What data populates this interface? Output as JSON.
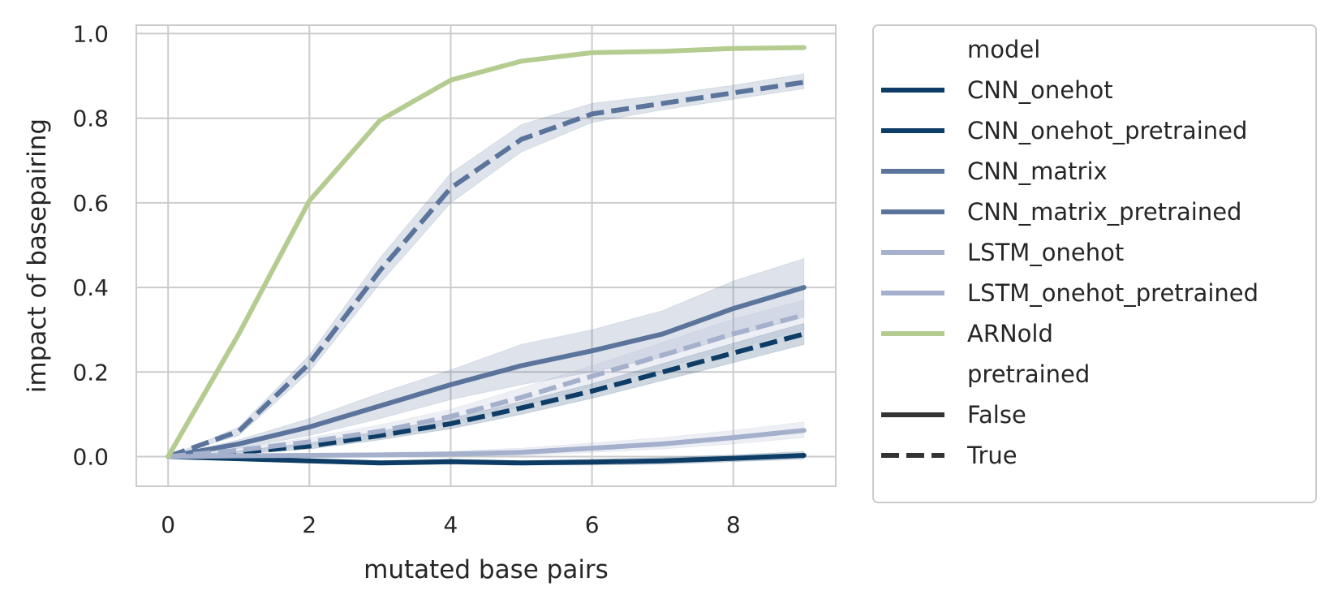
{
  "chart_data": {
    "type": "line",
    "title": "",
    "xlabel": "mutated base pairs",
    "ylabel": "impact of basepairing",
    "xlim": [
      -0.45,
      9.45
    ],
    "ylim": [
      -0.07,
      1.02
    ],
    "xticks": [
      "0",
      "2",
      "4",
      "6",
      "8"
    ],
    "xtick_values": [
      0,
      2,
      4,
      6,
      8
    ],
    "yticks": [
      "0.0",
      "0.2",
      "0.4",
      "0.6",
      "0.8",
      "1.0"
    ],
    "ytick_values": [
      0.0,
      0.2,
      0.4,
      0.6,
      0.8,
      1.0
    ],
    "grid": true,
    "legend_position": "outside-right",
    "x": [
      0,
      1,
      2,
      3,
      4,
      5,
      6,
      7,
      8,
      9
    ],
    "series": [
      {
        "name": "CNN_onehot",
        "pretrained": "False",
        "color": "#0d3d66",
        "dashed": false,
        "values": [
          0.0,
          -0.005,
          -0.01,
          -0.015,
          -0.012,
          -0.015,
          -0.013,
          -0.01,
          -0.004,
          0.003
        ],
        "ci_low": [
          0.0,
          -0.008,
          -0.015,
          -0.02,
          -0.018,
          -0.02,
          -0.02,
          -0.018,
          -0.012,
          -0.006
        ],
        "ci_high": [
          0.0,
          -0.002,
          -0.005,
          -0.01,
          -0.006,
          -0.01,
          -0.006,
          -0.002,
          0.004,
          0.012
        ]
      },
      {
        "name": "CNN_onehot_pretrained",
        "pretrained": "True",
        "color": "#0d3d66",
        "dashed": true,
        "values": [
          0.0,
          0.01,
          0.025,
          0.05,
          0.078,
          0.115,
          0.155,
          0.2,
          0.245,
          0.29
        ],
        "ci_low": [
          0.0,
          0.006,
          0.018,
          0.04,
          0.066,
          0.1,
          0.138,
          0.18,
          0.222,
          0.265
        ],
        "ci_high": [
          0.0,
          0.014,
          0.032,
          0.06,
          0.09,
          0.13,
          0.172,
          0.22,
          0.268,
          0.315
        ]
      },
      {
        "name": "CNN_matrix",
        "pretrained": "False",
        "color": "#5a749c",
        "dashed": false,
        "values": [
          0.0,
          0.03,
          0.07,
          0.12,
          0.17,
          0.215,
          0.25,
          0.29,
          0.35,
          0.4
        ],
        "ci_low": [
          0.0,
          0.02,
          0.05,
          0.09,
          0.135,
          0.17,
          0.2,
          0.235,
          0.285,
          0.33
        ],
        "ci_high": [
          0.0,
          0.04,
          0.09,
          0.15,
          0.205,
          0.265,
          0.3,
          0.345,
          0.415,
          0.468
        ]
      },
      {
        "name": "CNN_matrix_pretrained",
        "pretrained": "True",
        "color": "#5a749c",
        "dashed": true,
        "values": [
          0.0,
          0.06,
          0.22,
          0.44,
          0.635,
          0.75,
          0.81,
          0.835,
          0.86,
          0.885
        ],
        "ci_low": [
          0.0,
          0.05,
          0.2,
          0.41,
          0.6,
          0.72,
          0.79,
          0.82,
          0.845,
          0.87
        ],
        "ci_high": [
          0.0,
          0.07,
          0.24,
          0.47,
          0.67,
          0.785,
          0.835,
          0.855,
          0.878,
          0.905
        ]
      },
      {
        "name": "LSTM_onehot",
        "pretrained": "False",
        "color": "#a4b0cc",
        "dashed": false,
        "values": [
          0.0,
          0.002,
          0.003,
          0.004,
          0.006,
          0.01,
          0.02,
          0.03,
          0.045,
          0.062
        ],
        "ci_low": [
          0.0,
          0.0,
          0.0,
          0.0,
          0.0,
          0.002,
          0.01,
          0.018,
          0.03,
          0.045
        ],
        "ci_high": [
          0.0,
          0.005,
          0.007,
          0.009,
          0.013,
          0.02,
          0.032,
          0.045,
          0.062,
          0.082
        ]
      },
      {
        "name": "LSTM_onehot_pretrained",
        "pretrained": "True",
        "color": "#a4b0cc",
        "dashed": true,
        "values": [
          0.0,
          0.015,
          0.035,
          0.06,
          0.095,
          0.14,
          0.19,
          0.24,
          0.29,
          0.335
        ],
        "ci_low": [
          0.0,
          0.01,
          0.025,
          0.045,
          0.078,
          0.118,
          0.165,
          0.21,
          0.255,
          0.3
        ],
        "ci_high": [
          0.0,
          0.02,
          0.045,
          0.075,
          0.112,
          0.162,
          0.215,
          0.27,
          0.325,
          0.37
        ]
      },
      {
        "name": "ARNold",
        "pretrained": "False",
        "color": "#b5cc91",
        "dashed": false,
        "values": [
          0.0,
          0.29,
          0.605,
          0.795,
          0.89,
          0.935,
          0.955,
          0.958,
          0.965,
          0.967
        ],
        "ci_low": null,
        "ci_high": null
      }
    ],
    "legend": {
      "model_title": "model",
      "model_entries": [
        {
          "label": "CNN_onehot",
          "color": "#0d3d66"
        },
        {
          "label": "CNN_onehot_pretrained",
          "color": "#0d3d66"
        },
        {
          "label": "CNN_matrix",
          "color": "#5a749c"
        },
        {
          "label": "CNN_matrix_pretrained",
          "color": "#5a749c"
        },
        {
          "label": "LSTM_onehot",
          "color": "#a4b0cc"
        },
        {
          "label": "LSTM_onehot_pretrained",
          "color": "#a4b0cc"
        },
        {
          "label": "ARNold",
          "color": "#b5cc91"
        }
      ],
      "style_title": "pretrained",
      "style_entries": [
        {
          "label": "False",
          "dashed": false,
          "color": "#333333"
        },
        {
          "label": "True",
          "dashed": true,
          "color": "#333333"
        }
      ]
    }
  }
}
